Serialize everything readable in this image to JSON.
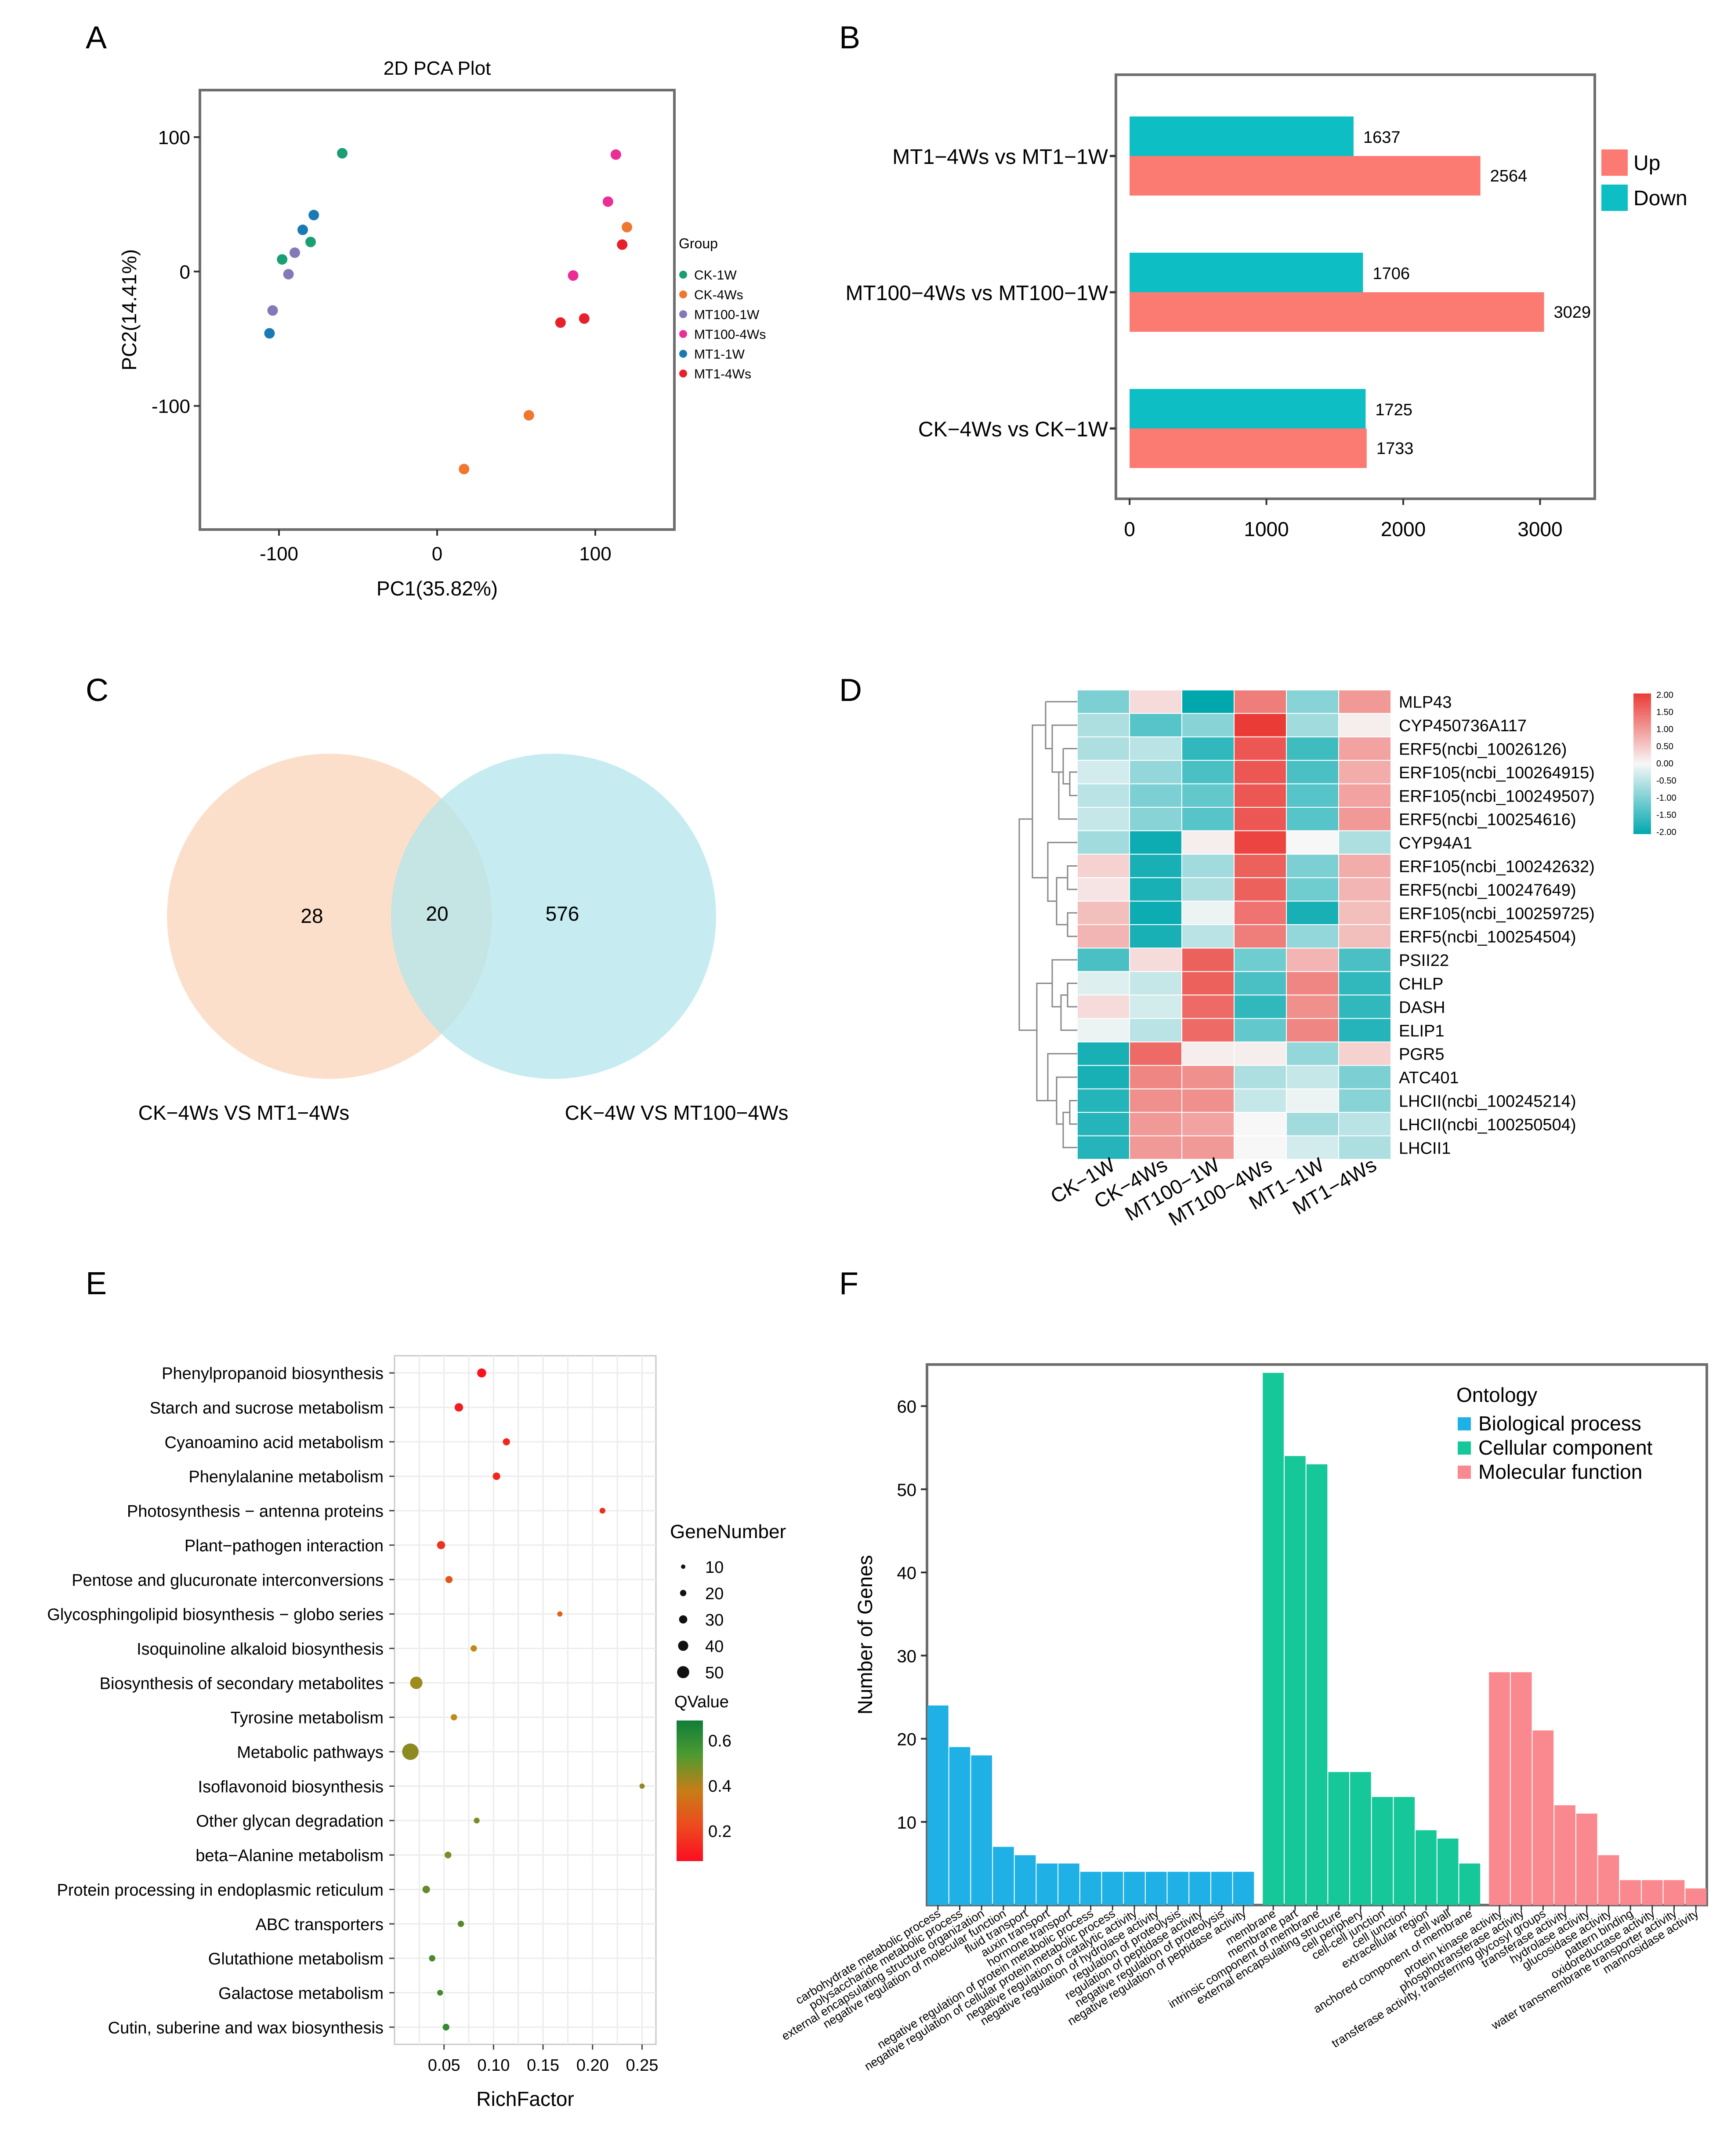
{
  "panel_labels": [
    "A",
    "B",
    "C",
    "D",
    "E",
    "F"
  ],
  "colors": {
    "CK-1W": "#1a9e74",
    "CK-4Ws": "#f0772f",
    "MT100-1W": "#8479b8",
    "MT100-4Ws": "#eb2e95",
    "MT1-1W": "#1b7ab4",
    "MT1-4Ws": "#e8202a",
    "up": "#fb7a72",
    "down": "#0dbfc4",
    "venn_left": "#fbd9c2",
    "venn_right": "#b3e5ec",
    "bio": "#1fb1e6",
    "cell": "#15c799",
    "mol": "#fa898f"
  },
  "chart_data": [
    {
      "id": "A",
      "type": "scatter",
      "title": "2D PCA Plot",
      "xlabel": "PC1(35.82%)",
      "ylabel": "PC2(14.41%)",
      "xlim": [
        -150,
        150
      ],
      "ylim": [
        -192,
        135
      ],
      "xticks": [
        -100,
        0,
        100
      ],
      "yticks": [
        100,
        0,
        -100
      ],
      "legend_title": "Group",
      "series": [
        {
          "name": "CK-1W",
          "points": [
            [
              -60,
              88
            ],
            [
              -80,
              22
            ],
            [
              -98,
              9
            ]
          ]
        },
        {
          "name": "CK-4Ws",
          "points": [
            [
              120,
              33
            ],
            [
              58,
              -107
            ],
            [
              17,
              -147
            ]
          ]
        },
        {
          "name": "MT100-1W",
          "points": [
            [
              -90,
              14
            ],
            [
              -94,
              -2
            ],
            [
              -104,
              -29
            ]
          ]
        },
        {
          "name": "MT100-4Ws",
          "points": [
            [
              113,
              87
            ],
            [
              108,
              52
            ],
            [
              86,
              -3
            ]
          ]
        },
        {
          "name": "MT1-1W",
          "points": [
            [
              -78,
              42
            ],
            [
              -85,
              31
            ],
            [
              -106,
              -46
            ]
          ]
        },
        {
          "name": "MT1-4Ws",
          "points": [
            [
              117,
              20
            ],
            [
              93,
              -35
            ],
            [
              78,
              -38
            ]
          ]
        }
      ]
    },
    {
      "id": "B",
      "type": "bar",
      "orientation": "horizontal",
      "categories": [
        "MT1−4Ws vs MT1−1W",
        "MT100−4Ws vs MT100−1W",
        "CK−4Ws vs CK−1W"
      ],
      "series": [
        {
          "name": "Up",
          "values": [
            2564,
            3029,
            1733
          ]
        },
        {
          "name": "Down",
          "values": [
            1637,
            1706,
            1725
          ]
        }
      ],
      "xlim": [
        -100,
        3400
      ],
      "xticks": [
        0,
        1000,
        2000,
        3000
      ]
    },
    {
      "id": "C",
      "type": "venn",
      "sets": [
        "CK−4Ws VS MT1−4Ws",
        "CK−4W VS MT100−4Ws"
      ],
      "values": {
        "left_only": "28",
        "overlap": "20",
        "right_only": "576"
      }
    },
    {
      "id": "D",
      "type": "heatmap",
      "columns": [
        "CK−1W",
        "CK−4Ws",
        "MT100−1W",
        "MT100−4Ws",
        "MT1−1W",
        "MT1−4Ws"
      ],
      "rows": [
        "MLP43",
        "CYP450736A117",
        "ERF5(ncbi_10026126)",
        "ERF105(ncbi_100264915)",
        "ERF105(ncbi_100249507)",
        "ERF5(ncbi_100254616)",
        "CYP94A1",
        "ERF105(ncbi_100242632)",
        "ERF5(ncbi_100247649)",
        "ERF105(ncbi_100259725)",
        "ERF5(ncbi_100254504)",
        "PSII22",
        "CHLP",
        "DASH",
        "ELIP1",
        "PGR5",
        "ATC401",
        "LHCII(ncbi_100245214)",
        "LHCII(ncbi_100250504)",
        "LHCII1"
      ],
      "values": [
        [
          -1.0,
          0.3,
          -2.0,
          1.3,
          -0.9,
          1.0
        ],
        [
          -0.6,
          -1.3,
          -0.9,
          2.0,
          -0.7,
          0.1
        ],
        [
          -0.6,
          -0.5,
          -1.6,
          1.7,
          -1.5,
          0.9
        ],
        [
          -0.3,
          -0.8,
          -1.4,
          1.7,
          -1.4,
          0.8
        ],
        [
          -0.5,
          -1.0,
          -1.2,
          1.7,
          -1.3,
          0.9
        ],
        [
          -0.4,
          -0.9,
          -1.3,
          1.7,
          -1.3,
          1.0
        ],
        [
          -0.7,
          -1.9,
          0.1,
          1.9,
          0.0,
          -0.6
        ],
        [
          0.4,
          -1.8,
          -0.7,
          1.6,
          -1.0,
          0.8
        ],
        [
          0.2,
          -1.8,
          -0.6,
          1.6,
          -1.1,
          0.7
        ],
        [
          0.6,
          -1.9,
          -0.1,
          1.4,
          -1.8,
          0.6
        ],
        [
          0.7,
          -1.8,
          -0.5,
          1.3,
          -0.8,
          0.6
        ],
        [
          -1.4,
          0.3,
          1.6,
          -1.1,
          0.7,
          -1.4
        ],
        [
          -0.2,
          -0.4,
          1.6,
          -1.4,
          1.2,
          -1.6
        ],
        [
          0.3,
          -0.3,
          1.5,
          -1.6,
          1.1,
          -1.6
        ],
        [
          -0.1,
          -0.5,
          1.5,
          -1.2,
          1.2,
          -1.7
        ],
        [
          -1.8,
          1.5,
          0.1,
          0.1,
          -0.8,
          0.4
        ],
        [
          -1.8,
          1.2,
          1.1,
          -0.6,
          -0.4,
          -1.0
        ],
        [
          -1.7,
          1.1,
          1.1,
          -0.4,
          -0.1,
          -0.9
        ],
        [
          -1.7,
          1.0,
          0.9,
          0.0,
          -0.7,
          -0.5
        ],
        [
          -1.7,
          1.0,
          1.0,
          0.0,
          -0.3,
          -0.6
        ]
      ],
      "scale": {
        "min": -2.0,
        "max": 2.0,
        "ticks": [
          "2.00",
          "1.50",
          "1.00",
          "0.50",
          "0.00",
          "-0.50",
          "-1.00",
          "-1.50",
          "-2.00"
        ]
      }
    },
    {
      "id": "E",
      "type": "scatter",
      "subtype": "bubble",
      "xlabel": "RichFactor",
      "xlim": [
        0.0,
        0.264
      ],
      "xticks": [
        0.05,
        0.1,
        0.15,
        0.2,
        0.25
      ],
      "xtick_labels": [
        "0.05",
        "0.10",
        "0.15",
        "0.20",
        "0.25"
      ],
      "pathways": [
        "Phenylpropanoid biosynthesis",
        "Starch and sucrose metabolism",
        "Cyanoamino acid metabolism",
        "Phenylalanine metabolism",
        "Photosynthesis − antenna proteins",
        "Plant−pathogen interaction",
        "Pentose and glucuronate interconversions",
        "Glycosphingolipid biosynthesis − globo series",
        "Isoquinoline alkaloid biosynthesis",
        "Biosynthesis of secondary metabolites",
        "Tyrosine metabolism",
        "Metabolic pathways",
        "Isoflavonoid biosynthesis",
        "Other glycan degradation",
        "beta−Alanine metabolism",
        "Protein processing in endoplasmic reticulum",
        "ABC transporters",
        "Glutathione metabolism",
        "Galactose metabolism",
        "Cutin, suberine and wax biosynthesis"
      ],
      "rich_factor": [
        0.088,
        0.065,
        0.113,
        0.103,
        0.21,
        0.047,
        0.055,
        0.167,
        0.08,
        0.022,
        0.06,
        0.016,
        0.25,
        0.083,
        0.054,
        0.032,
        0.067,
        0.038,
        0.046,
        0.052
      ],
      "gene_number": [
        12,
        10,
        6,
        7,
        3,
        9,
        6,
        2,
        4,
        28,
        4,
        56,
        2,
        3,
        5,
        7,
        4,
        4,
        3,
        5
      ],
      "qvalue": [
        0.05,
        0.07,
        0.1,
        0.1,
        0.12,
        0.13,
        0.22,
        0.25,
        0.38,
        0.43,
        0.38,
        0.46,
        0.45,
        0.48,
        0.48,
        0.52,
        0.55,
        0.57,
        0.58,
        0.6
      ],
      "size_legend_title": "GeneNumber",
      "size_legend": [
        10,
        20,
        30,
        40,
        50
      ],
      "color_legend_title": "QValue",
      "color_ticks": [
        "0.6",
        "0.4",
        "0.2"
      ],
      "color_range": [
        0.05,
        0.65
      ]
    },
    {
      "id": "F",
      "type": "bar",
      "ylabel": "Number of Genes",
      "ylim": [
        0,
        65
      ],
      "yticks": [
        10,
        20,
        30,
        40,
        50,
        60
      ],
      "legend_title": "Ontology",
      "groups": [
        {
          "name": "Biological  process",
          "color_key": "bio",
          "categories": [
            "carbohydrate metabolic process",
            "polysaccharide metabolic process",
            "external encapsulating structure organization",
            "negative regulation of molecular function",
            "fluid transport",
            "auxin transport",
            "hormone transport",
            "negative regulation of protein metabolic process",
            "negative regulation of cellular protein metabolic process",
            "negative regulation of catalytic activity",
            "negative regulation of hydrolase activity",
            "regulation of proteolysis",
            "regulation of peptidase activity",
            "negative regulation of proteolysis",
            "negative regulation of peptidase activity"
          ],
          "values": [
            24,
            19,
            18,
            7,
            6,
            5,
            5,
            4,
            4,
            4,
            4,
            4,
            4,
            4,
            4
          ]
        },
        {
          "name": "Cellular  component",
          "color_key": "cell",
          "categories": [
            "membrane",
            "membrane part",
            "intrinsic component of membrane",
            "external encapsulating structure",
            "cell periphery",
            "cell-cell junction",
            "cell junction",
            "extracellular region",
            "cell wall",
            "anchored component of membrane"
          ],
          "values": [
            64,
            54,
            53,
            16,
            16,
            13,
            13,
            9,
            8,
            5
          ]
        },
        {
          "name": "Molecular  function",
          "color_key": "mol",
          "categories": [
            "protein kinase activity",
            "phosphotransferase activity",
            "transferase activity, transferring glycosyl groups",
            "transferase activity",
            "hydrolase activity",
            "glucosidase activity",
            "pattern binding",
            "oxidoreductase activity",
            "water transmembrane transporter activity",
            "mannosidase activity"
          ],
          "values": [
            28,
            28,
            21,
            12,
            11,
            6,
            3,
            3,
            3,
            2
          ]
        }
      ]
    }
  ]
}
